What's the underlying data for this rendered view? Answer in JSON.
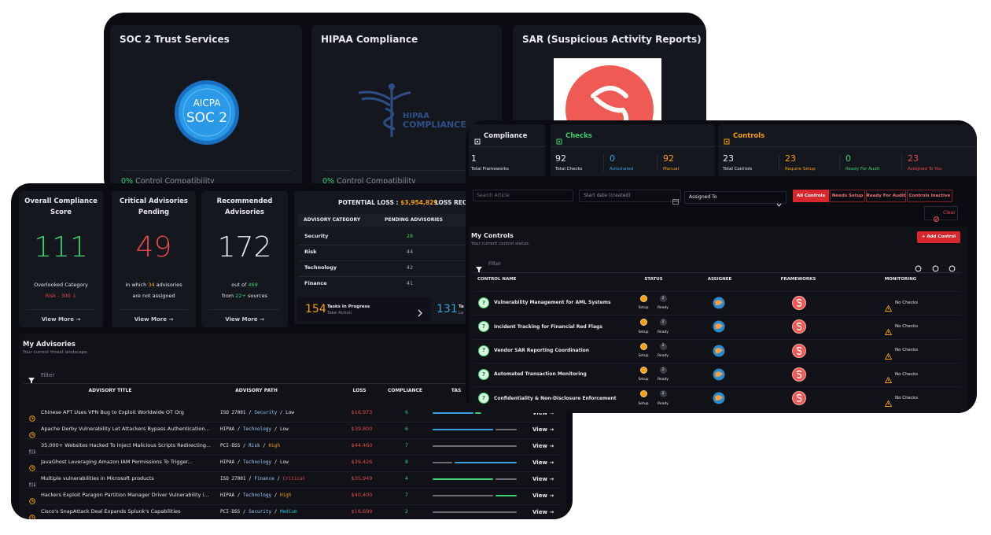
{
  "background_cards": [
    {
      "title": "SOC 2 Trust Services",
      "logo": [
        "AICPA",
        "SOC 2"
      ],
      "percent": "0%",
      "caption": "Control Compatibility"
    },
    {
      "title": "HIPAA Compliance",
      "logo": [
        "HIPAA",
        "COMPLIANCE"
      ],
      "percent": "0%",
      "caption": "Control Compatibility"
    },
    {
      "title": "SAR (Suspicious Activity Reports)"
    }
  ],
  "stats": [
    {
      "title": "Overall Compliance Score",
      "value": "111",
      "value_color": "#3ecf6e",
      "lines": [
        [
          {
            "text": "Overlooked Category"
          }
        ],
        [
          {
            "text": "Risk - 300 ↓",
            "color": "#e5484d"
          }
        ]
      ],
      "link": "View More  →"
    },
    {
      "title": "Critical Advisories Pending",
      "value": "49",
      "value_color": "#e5484d",
      "lines": [
        [
          {
            "text": "in which "
          },
          {
            "text": "34",
            "color": "#f5b400"
          },
          {
            "text": " advisories"
          }
        ],
        [
          {
            "text": "are not assigned"
          }
        ]
      ],
      "link": "View More  →"
    },
    {
      "title": "Recommended Advisories",
      "value": "172",
      "value_color": "#e8e8ee",
      "lines": [
        [
          {
            "text": "out of "
          },
          {
            "text": "469",
            "color": "#3ecf6e"
          }
        ],
        [
          {
            "text": "from "
          },
          {
            "text": "22+",
            "color": "#3ecf6e"
          },
          {
            "text": " sources"
          }
        ]
      ],
      "link": "View More  →"
    }
  ],
  "loss": {
    "potential": "POTENTIAL LOSS : ",
    "amount": "$3,954,829",
    "recovered": "LOSS REC",
    "headers": [
      "ADVISORY CATEGORY",
      "PENDING ADVISORIES"
    ],
    "rows": [
      [
        "Security",
        "28"
      ],
      [
        "Risk",
        "44"
      ],
      [
        "Technology",
        "42"
      ],
      [
        "Finance",
        "41"
      ]
    ],
    "tasks": [
      {
        "count": "154",
        "label": "Tasks In Progress",
        "sub": "Take Action"
      },
      {
        "count": "131",
        "label": "Ta",
        "sub": "Le"
      }
    ]
  },
  "advisories": {
    "title": "My Advisories",
    "subtitle": "Your current threat landscape.",
    "filter": "Filter",
    "separator": "/",
    "action": "View →",
    "headers": [
      "ADVISORY TITLE",
      "ADVISORY PATH",
      "LOSS",
      "COMPLIANCE",
      "TAS"
    ],
    "rows": [
      {
        "title": "Chinese APT Uses VPN Bug to Exploit Worldwide OT Org",
        "framework": "ISO 27001",
        "category": "Security",
        "level": "Low",
        "level_color": "#e8e8ee",
        "loss": "$16,973",
        "compliance": "6"
      },
      {
        "title": "Apache Derby Vulnerability Let Attackers Bypass Authentication...",
        "framework": "HIPAA",
        "category": "Technology",
        "level": "Low",
        "level_color": "#e8e8ee",
        "loss": "$39,800",
        "compliance": "6"
      },
      {
        "title": "35,000+ Websites Hacked To Inject Malicious Scripts Redirecting...",
        "framework": "PCI-DSS",
        "category": "Risk",
        "level": "High",
        "level_color": "#f59e0b",
        "loss": "$44,460",
        "compliance": "7"
      },
      {
        "title": "JavaGhost Leveraging Amazon IAM Permissions To Trigger...",
        "framework": "HIPAA",
        "category": "Technology",
        "level": "Low",
        "level_color": "#e8e8ee",
        "loss": "$39,426",
        "compliance": "8"
      },
      {
        "title": "Multiple vulnerabilities in Microsoft products",
        "framework": "ISO 27001",
        "category": "Finance",
        "level": "Critical",
        "level_color": "#e5484d",
        "loss": "$35,949",
        "compliance": "4"
      },
      {
        "title": "Hackers Exploit Paragon Partition Manager Driver Vulnerability i...",
        "framework": "HIPAA",
        "category": "Technology",
        "level": "High",
        "level_color": "#f59e0b",
        "loss": "$40,400",
        "compliance": "7"
      },
      {
        "title": "Cisco's SnapAttack Deal Expands Splunk's Capabilities",
        "framework": "PCI-DSS",
        "category": "Security",
        "level": "Medium",
        "level_color": "#22c3d6",
        "loss": "$16,699",
        "compliance": "2"
      }
    ]
  },
  "summary": [
    {
      "title": "Compliance",
      "color": "#e8e8ee",
      "items": [
        {
          "value": "1",
          "label": "Total Frameworks",
          "color": "#e8e8ee"
        }
      ]
    },
    {
      "title": "Checks",
      "color": "#3ecf6e",
      "items": [
        {
          "value": "92",
          "label": "Total Checks",
          "color": "#e8e8ee"
        },
        {
          "value": "0",
          "label": "Automated",
          "color": "#3aa0e0"
        },
        {
          "value": "92",
          "label": "Manual",
          "color": "#f59e0b"
        }
      ]
    },
    {
      "title": "Controls",
      "color": "#f59e0b",
      "items": [
        {
          "value": "23",
          "label": "Total Controls",
          "color": "#e8e8ee"
        },
        {
          "value": "23",
          "label": "Require Setup",
          "color": "#f59e0b"
        },
        {
          "value": "0",
          "label": "Ready For Audit",
          "color": "#3ecf6e"
        },
        {
          "value": "23",
          "label": "Assigned To You",
          "color": "#e5484d"
        }
      ]
    }
  ],
  "filters": {
    "search": "Search Article",
    "date": "Start date (created)",
    "assigned": "Assigned To",
    "tabs": [
      "All Controls",
      "Needs Setup",
      "Ready For Audit",
      "Controls Inactive"
    ],
    "clear": "Clear"
  },
  "controls": {
    "title": "My Controls",
    "subtitle": "Your current control status.",
    "add": "+ Add Control",
    "filter": "Filter",
    "headers": [
      "CONTROL NAME",
      "STATUS",
      "ASSIGNEE",
      "FRAMEWORKS",
      "MONITORING"
    ],
    "setup": "Setup",
    "ready_label": "Ready",
    "monitoring": "No Checks",
    "rows": [
      {
        "name": "Vulnerability Management for AML Systems",
        "badge": "?",
        "ready": "2"
      },
      {
        "name": "Incident Tracking for Financial Red Flags",
        "badge": "?",
        "ready": "2"
      },
      {
        "name": "Vendor SAR Reporting Coordination",
        "badge": "?",
        "ready": "2"
      },
      {
        "name": "Automated Transaction Monitoring",
        "badge": "?",
        "ready": "2"
      },
      {
        "name": "Confidentiality & Non-Disclosure Enforcement",
        "badge": "?",
        "ready": "2"
      }
    ]
  }
}
